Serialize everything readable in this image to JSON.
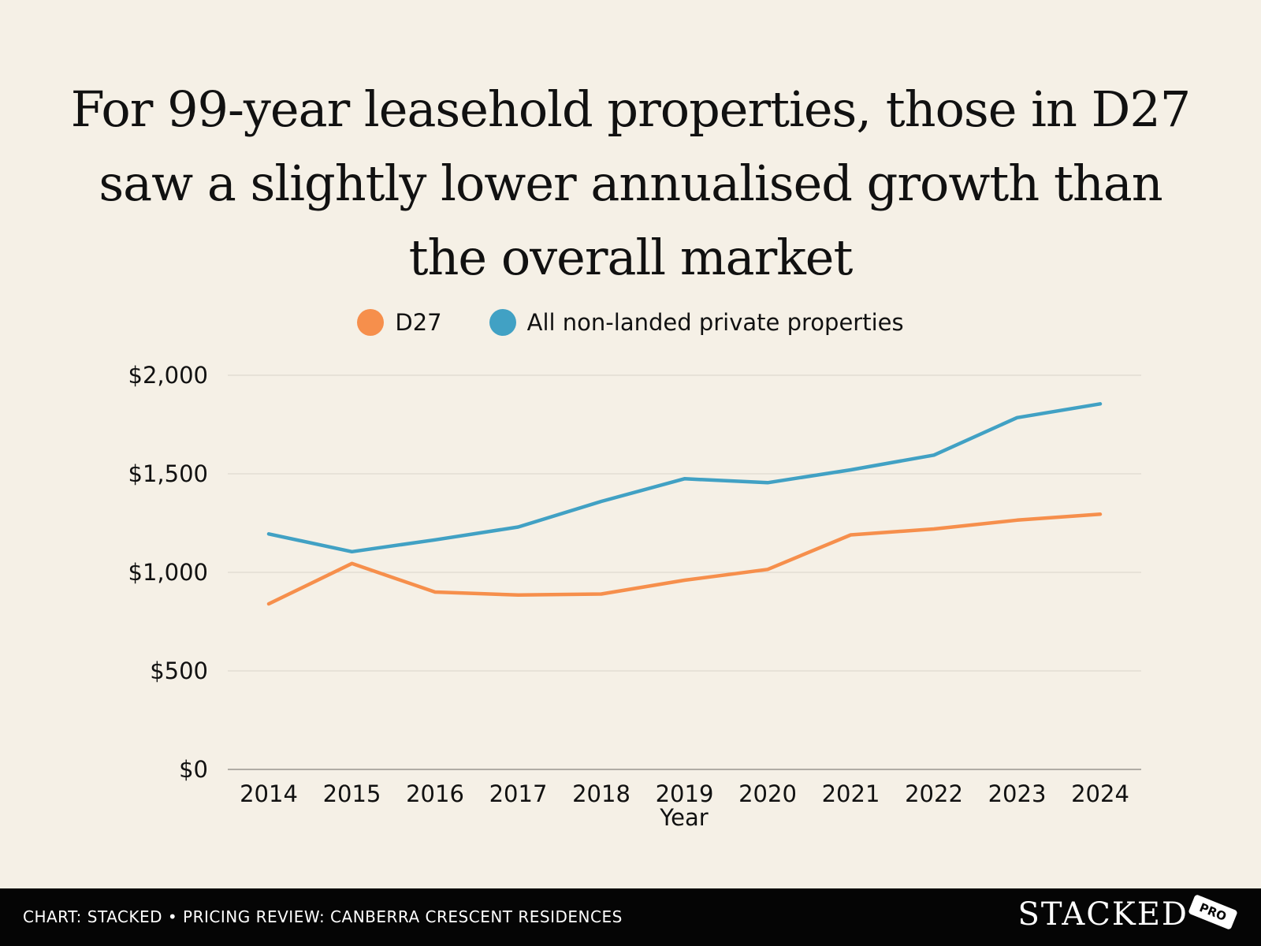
{
  "title": "For 99-year leasehold properties, those in D27 saw a slightly lower annualised growth than the overall market",
  "legend": {
    "d27": "D27",
    "all": "All non-landed private properties"
  },
  "colors": {
    "d27": "#f68f4c",
    "all": "#41a1c4",
    "background": "#f5f0e6",
    "grid": "#d9d4ca",
    "footer": "#050505"
  },
  "chart_data": {
    "type": "line",
    "title": "For 99-year leasehold properties, those in D27 saw a slightly lower annualised growth than the overall market",
    "xlabel": "Year",
    "ylabel": "",
    "categories": [
      "2014",
      "2015",
      "2016",
      "2017",
      "2018",
      "2019",
      "2020",
      "2021",
      "2022",
      "2023",
      "2024"
    ],
    "series": [
      {
        "name": "D27",
        "color": "#f68f4c",
        "values": [
          840,
          1045,
          900,
          885,
          890,
          960,
          1015,
          1190,
          1220,
          1265,
          1295
        ]
      },
      {
        "name": "All non-landed private properties",
        "color": "#41a1c4",
        "values": [
          1195,
          1105,
          1165,
          1230,
          1360,
          1475,
          1455,
          1520,
          1595,
          1785,
          1855
        ]
      }
    ],
    "ylim": [
      0,
      2000
    ],
    "yticks": [
      0,
      500,
      1000,
      1500,
      2000
    ],
    "ytick_labels": [
      "$0",
      "$500",
      "$1,000",
      "$1,500",
      "$2,000"
    ],
    "grid": true,
    "legend_position": "top-center"
  },
  "footer": {
    "source": "CHART: STACKED • PRICING REVIEW: CANBERRA CRESCENT RESIDENCES",
    "brand": "STACKED",
    "badge": "PRO"
  }
}
